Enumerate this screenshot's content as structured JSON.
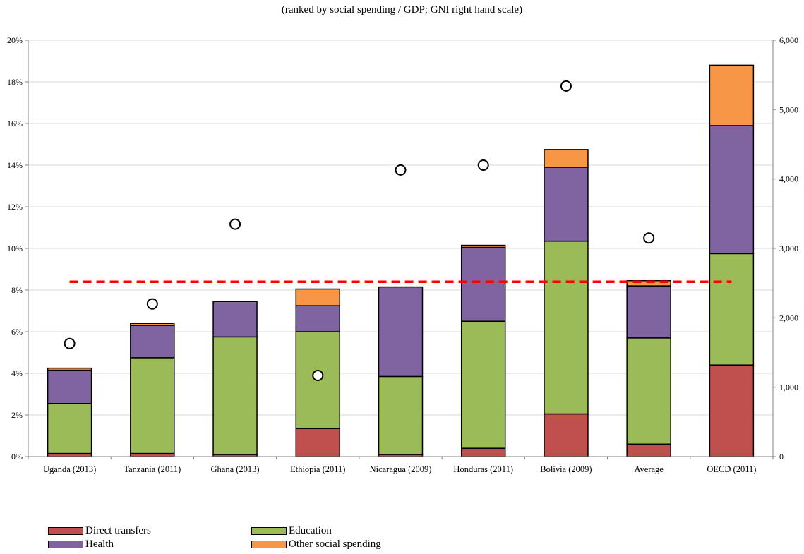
{
  "chart_data": {
    "type": "bar",
    "stacked": true,
    "subtitle": "(ranked by social spending / GDP; GNI right hand scale)",
    "categories": [
      "Uganda (2013)",
      "Tanzania (2011)",
      "Ghana (2013)",
      "Ethiopia (2011)",
      "Nicaragua (2009)",
      "Honduras (2011)",
      "Bolivia (2009)",
      "Average",
      "OECD (2011)"
    ],
    "series": [
      {
        "name": "Direct transfers",
        "color": "#c0504d",
        "values": [
          0.15,
          0.15,
          0.1,
          1.35,
          0.1,
          0.4,
          2.05,
          0.6,
          4.4
        ]
      },
      {
        "name": "Education",
        "color": "#9bbb59",
        "values": [
          2.4,
          4.6,
          5.65,
          4.65,
          3.75,
          6.1,
          8.3,
          5.1,
          5.35
        ]
      },
      {
        "name": "Health",
        "color": "#8064a2",
        "values": [
          1.6,
          1.55,
          1.7,
          1.25,
          4.3,
          3.55,
          3.55,
          2.5,
          6.15
        ]
      },
      {
        "name": "Other social spending",
        "color": "#f79646",
        "values": [
          0.1,
          0.1,
          0.0,
          0.8,
          0.0,
          0.1,
          0.85,
          0.25,
          2.9
        ]
      }
    ],
    "gni": {
      "axis": "right",
      "values": [
        1630,
        2200,
        3350,
        1170,
        4130,
        4200,
        5340,
        3150,
        null
      ]
    },
    "reference_line": {
      "value": 8.4,
      "color": "#ff0000",
      "style": "dashed"
    },
    "y_left": {
      "min": 0,
      "max": 20,
      "ticks": [
        "0%",
        "2%",
        "4%",
        "6%",
        "8%",
        "10%",
        "12%",
        "14%",
        "16%",
        "18%",
        "20%"
      ]
    },
    "y_right": {
      "min": 0,
      "max": 6000,
      "ticks": [
        "0",
        "1,000",
        "2,000",
        "3,000",
        "4,000",
        "5,000",
        "6,000"
      ]
    },
    "grid": true,
    "legend_position": "bottom-left"
  }
}
